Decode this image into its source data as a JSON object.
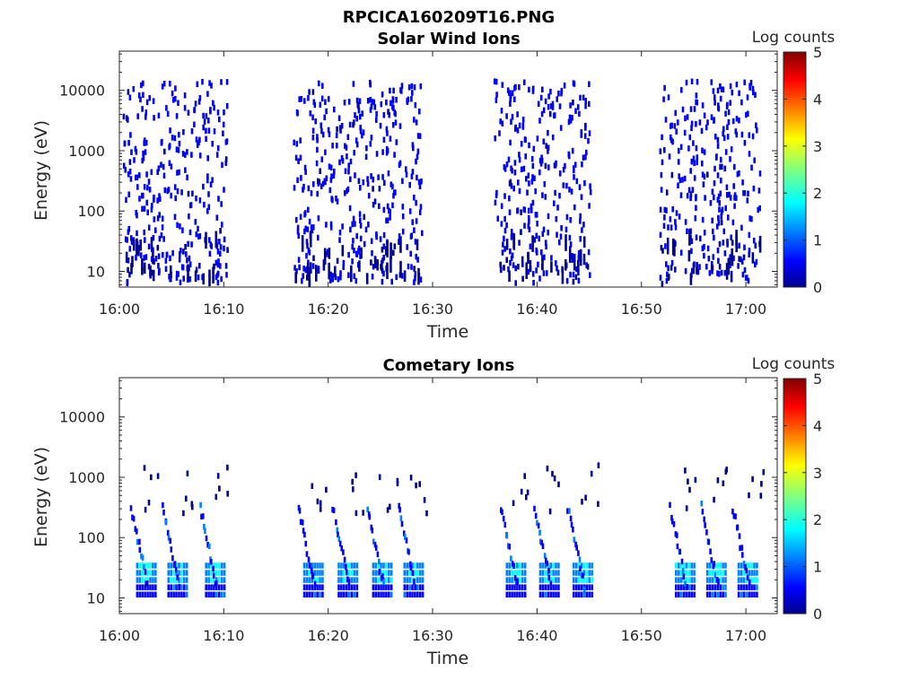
{
  "figure": {
    "title": "RPCICA160209T16.PNG"
  },
  "colormap": [
    "#00008f",
    "#0000ff",
    "#0080ff",
    "#00ffff",
    "#80ff80",
    "#ffff00",
    "#ff8000",
    "#ff0000",
    "#800000"
  ],
  "chart_data": [
    {
      "type": "heatmap",
      "title": "Solar Wind Ions",
      "xlabel": "Time",
      "ylabel": "Energy (eV)",
      "yscale": "log",
      "x_ticks": [
        "16:00",
        "16:10",
        "16:20",
        "16:30",
        "16:40",
        "16:50",
        "17:00"
      ],
      "y_ticks": [
        "10",
        "100",
        "1000",
        "10000"
      ],
      "colorbar": {
        "label": "Log counts",
        "range": [
          0,
          5
        ],
        "ticks": [
          "0",
          "1",
          "2",
          "3",
          "4",
          "5"
        ]
      },
      "xlim_minutes": [
        0,
        63
      ],
      "ylim_log10": [
        0.74,
        4.65
      ],
      "bursts": [
        {
          "start_min": 0.3,
          "end_min": 10.3,
          "dominant_log_counts": 0.3
        },
        {
          "start_min": 16.6,
          "end_min": 28.9,
          "dominant_log_counts": 0.3
        },
        {
          "start_min": 35.8,
          "end_min": 45.1,
          "dominant_log_counts": 0.3
        },
        {
          "start_min": 51.7,
          "end_min": 61.3,
          "dominant_log_counts": 0.3
        }
      ]
    },
    {
      "type": "heatmap",
      "title": "Cometary Ions",
      "xlabel": "Time",
      "ylabel": "Energy (eV)",
      "yscale": "log",
      "x_ticks": [
        "16:00",
        "16:10",
        "16:20",
        "16:30",
        "16:40",
        "16:50",
        "17:00"
      ],
      "y_ticks": [
        "10",
        "100",
        "1000",
        "10000"
      ],
      "colorbar": {
        "label": "Log counts",
        "range": [
          0,
          5
        ],
        "ticks": [
          "0",
          "1",
          "2",
          "3",
          "4",
          "5"
        ]
      },
      "xlim_minutes": [
        0,
        63
      ],
      "ylim_log10": [
        0.74,
        4.65
      ],
      "dispersion_events_min": [
        1.0,
        4.0,
        7.6,
        17.0,
        20.3,
        23.6,
        26.6,
        36.4,
        39.6,
        42.8,
        52.6,
        55.6,
        58.6
      ],
      "low_energy_band_eV": [
        15,
        35
      ],
      "peak_log_counts": 2.1
    }
  ]
}
